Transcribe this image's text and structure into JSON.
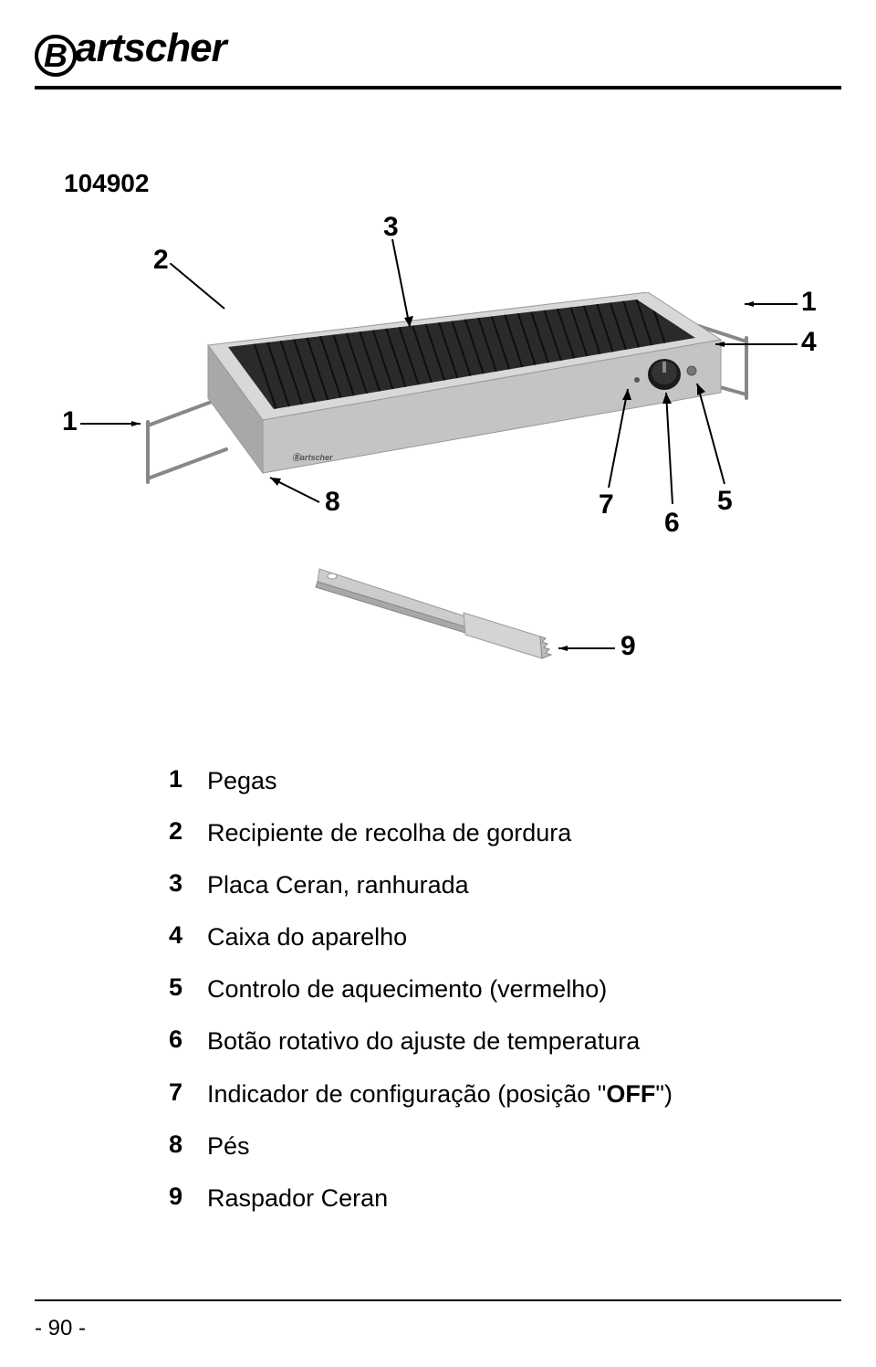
{
  "brand": "artscher",
  "brand_initial": "B",
  "product_code": "104902",
  "callouts": {
    "c1a": "1",
    "c1b": "1",
    "c2": "2",
    "c3": "3",
    "c4": "4",
    "c5": "5",
    "c6": "6",
    "c7": "7",
    "c8": "8",
    "c9": "9"
  },
  "parts": [
    {
      "num": "1",
      "desc": "Pegas"
    },
    {
      "num": "2",
      "desc": "Recipiente de recolha de gordura"
    },
    {
      "num": "3",
      "desc": "Placa Ceran, ranhurada"
    },
    {
      "num": "4",
      "desc": "Caixa do aparelho"
    },
    {
      "num": "5",
      "desc": "Controlo de aquecimento (vermelho)"
    },
    {
      "num": "6",
      "desc": "Botão rotativo do ajuste de temperatura"
    },
    {
      "num": "7",
      "desc_html": "Indicador de configuração (posição \"<b>OFF</b>\")"
    },
    {
      "num": "8",
      "desc": "Pés"
    },
    {
      "num": "9",
      "desc": "Raspador Ceran"
    }
  ],
  "page_number": "- 90 -",
  "colors": {
    "metal_light": "#d8d8d8",
    "metal_mid": "#b8b8b8",
    "metal_dark": "#888888",
    "plate_dark": "#2a2a2a",
    "plate_line": "#1a1a1a",
    "knob": "#1a1a1a",
    "knob_hilite": "#555555"
  }
}
